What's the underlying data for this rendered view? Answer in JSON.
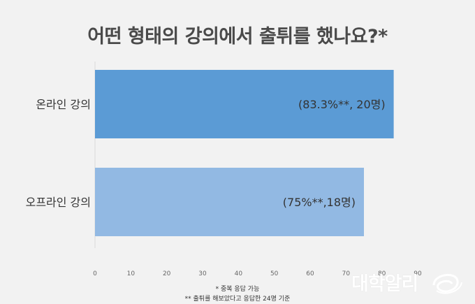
{
  "chart_data": {
    "type": "bar",
    "orientation": "horizontal",
    "title": "어떤 형태의 강의에서 출튀를 했나요?*",
    "categories": [
      "온라인 강의",
      "오프라인 강의"
    ],
    "values": [
      83.3,
      75
    ],
    "data_labels": [
      "(83.3%**, 20명)",
      "(75%**,18명)"
    ],
    "xlim": [
      0,
      90
    ],
    "xticks": [
      0,
      10,
      20,
      30,
      40,
      50,
      60,
      70,
      80,
      90
    ],
    "colors": [
      "#5b9bd5",
      "#92b9e3"
    ],
    "grid": false,
    "legend": "none"
  },
  "footnotes": [
    "* 중복 응답 가능",
    "** 출튀를 해보았다고 응답한  24명 기준"
  ],
  "logo": {
    "text": "대학알리"
  }
}
